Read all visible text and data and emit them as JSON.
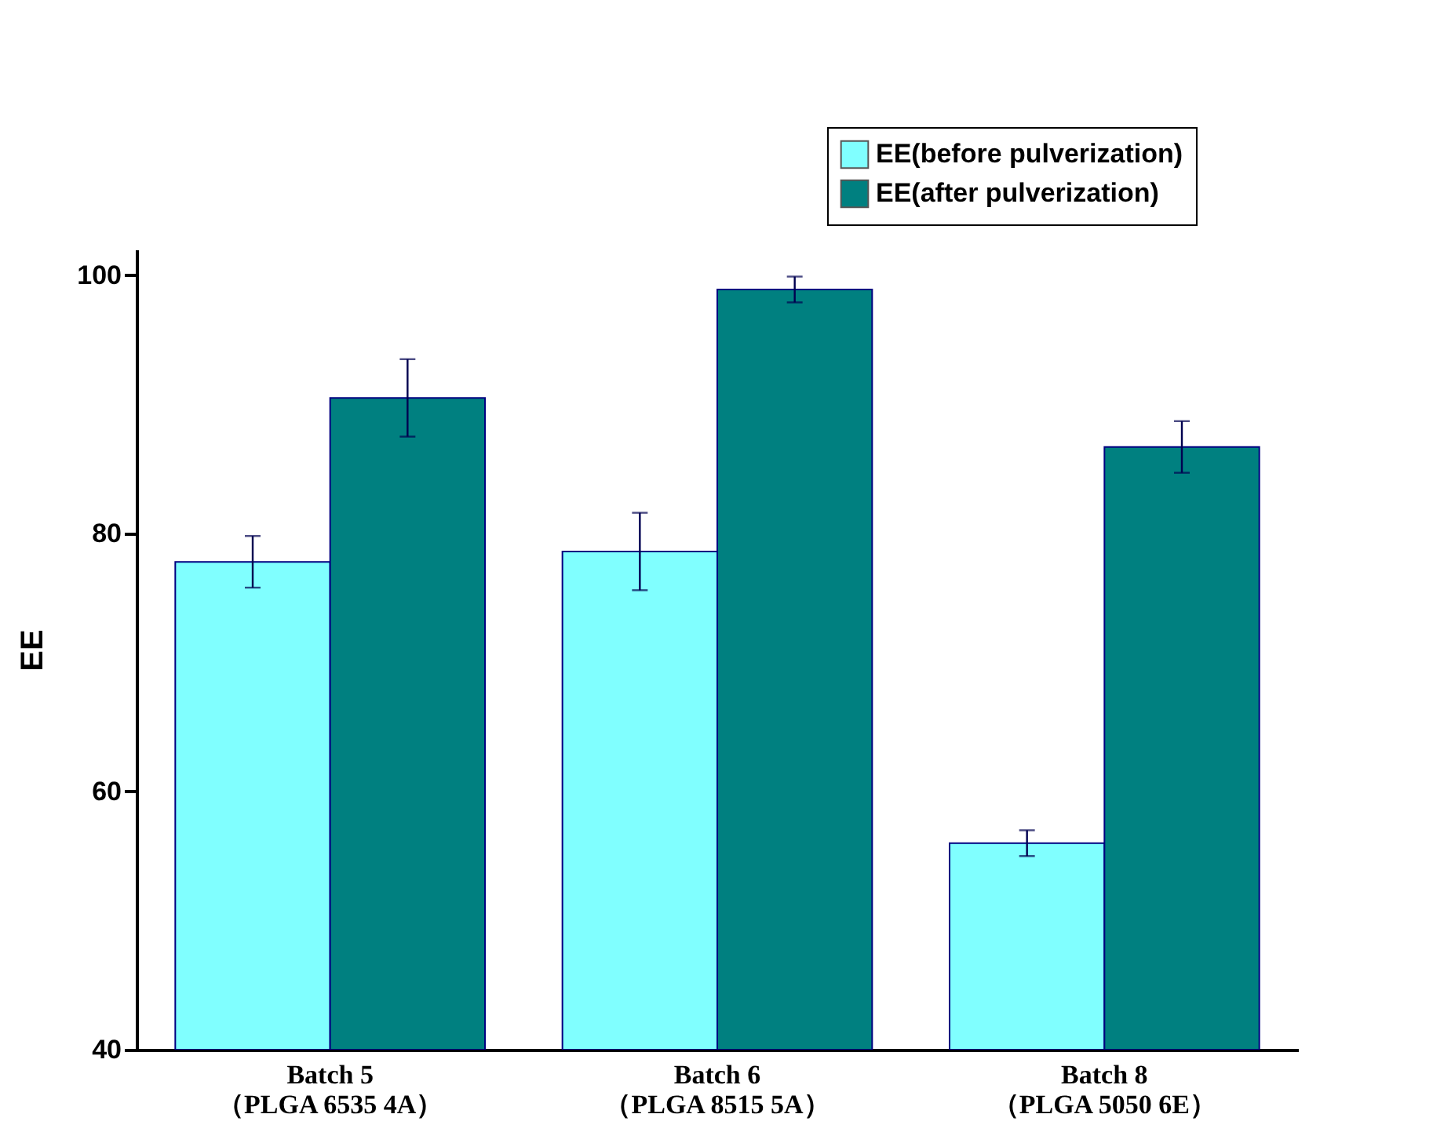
{
  "chart_data": {
    "type": "bar",
    "ylabel": "EE",
    "categories": [
      "Batch 5\n（PLGA 6535 4A）",
      "Batch 6\n（PLGA 8515 5A）",
      "Batch 8\n（PLGA 5050 6E）"
    ],
    "series": [
      {
        "name": "EE(before pulverization)",
        "color": "#80ffff",
        "values": [
          77.8,
          78.6,
          56.0
        ],
        "errors": [
          2.0,
          3.0,
          1.0
        ]
      },
      {
        "name": "EE(after pulverization)",
        "color": "#008080",
        "values": [
          90.5,
          98.9,
          86.7
        ],
        "errors": [
          3.0,
          1.0,
          2.0
        ]
      }
    ],
    "ylim": [
      40,
      102
    ],
    "yticks": [
      40,
      60,
      80,
      100
    ],
    "grid": false,
    "legend": "top right"
  }
}
